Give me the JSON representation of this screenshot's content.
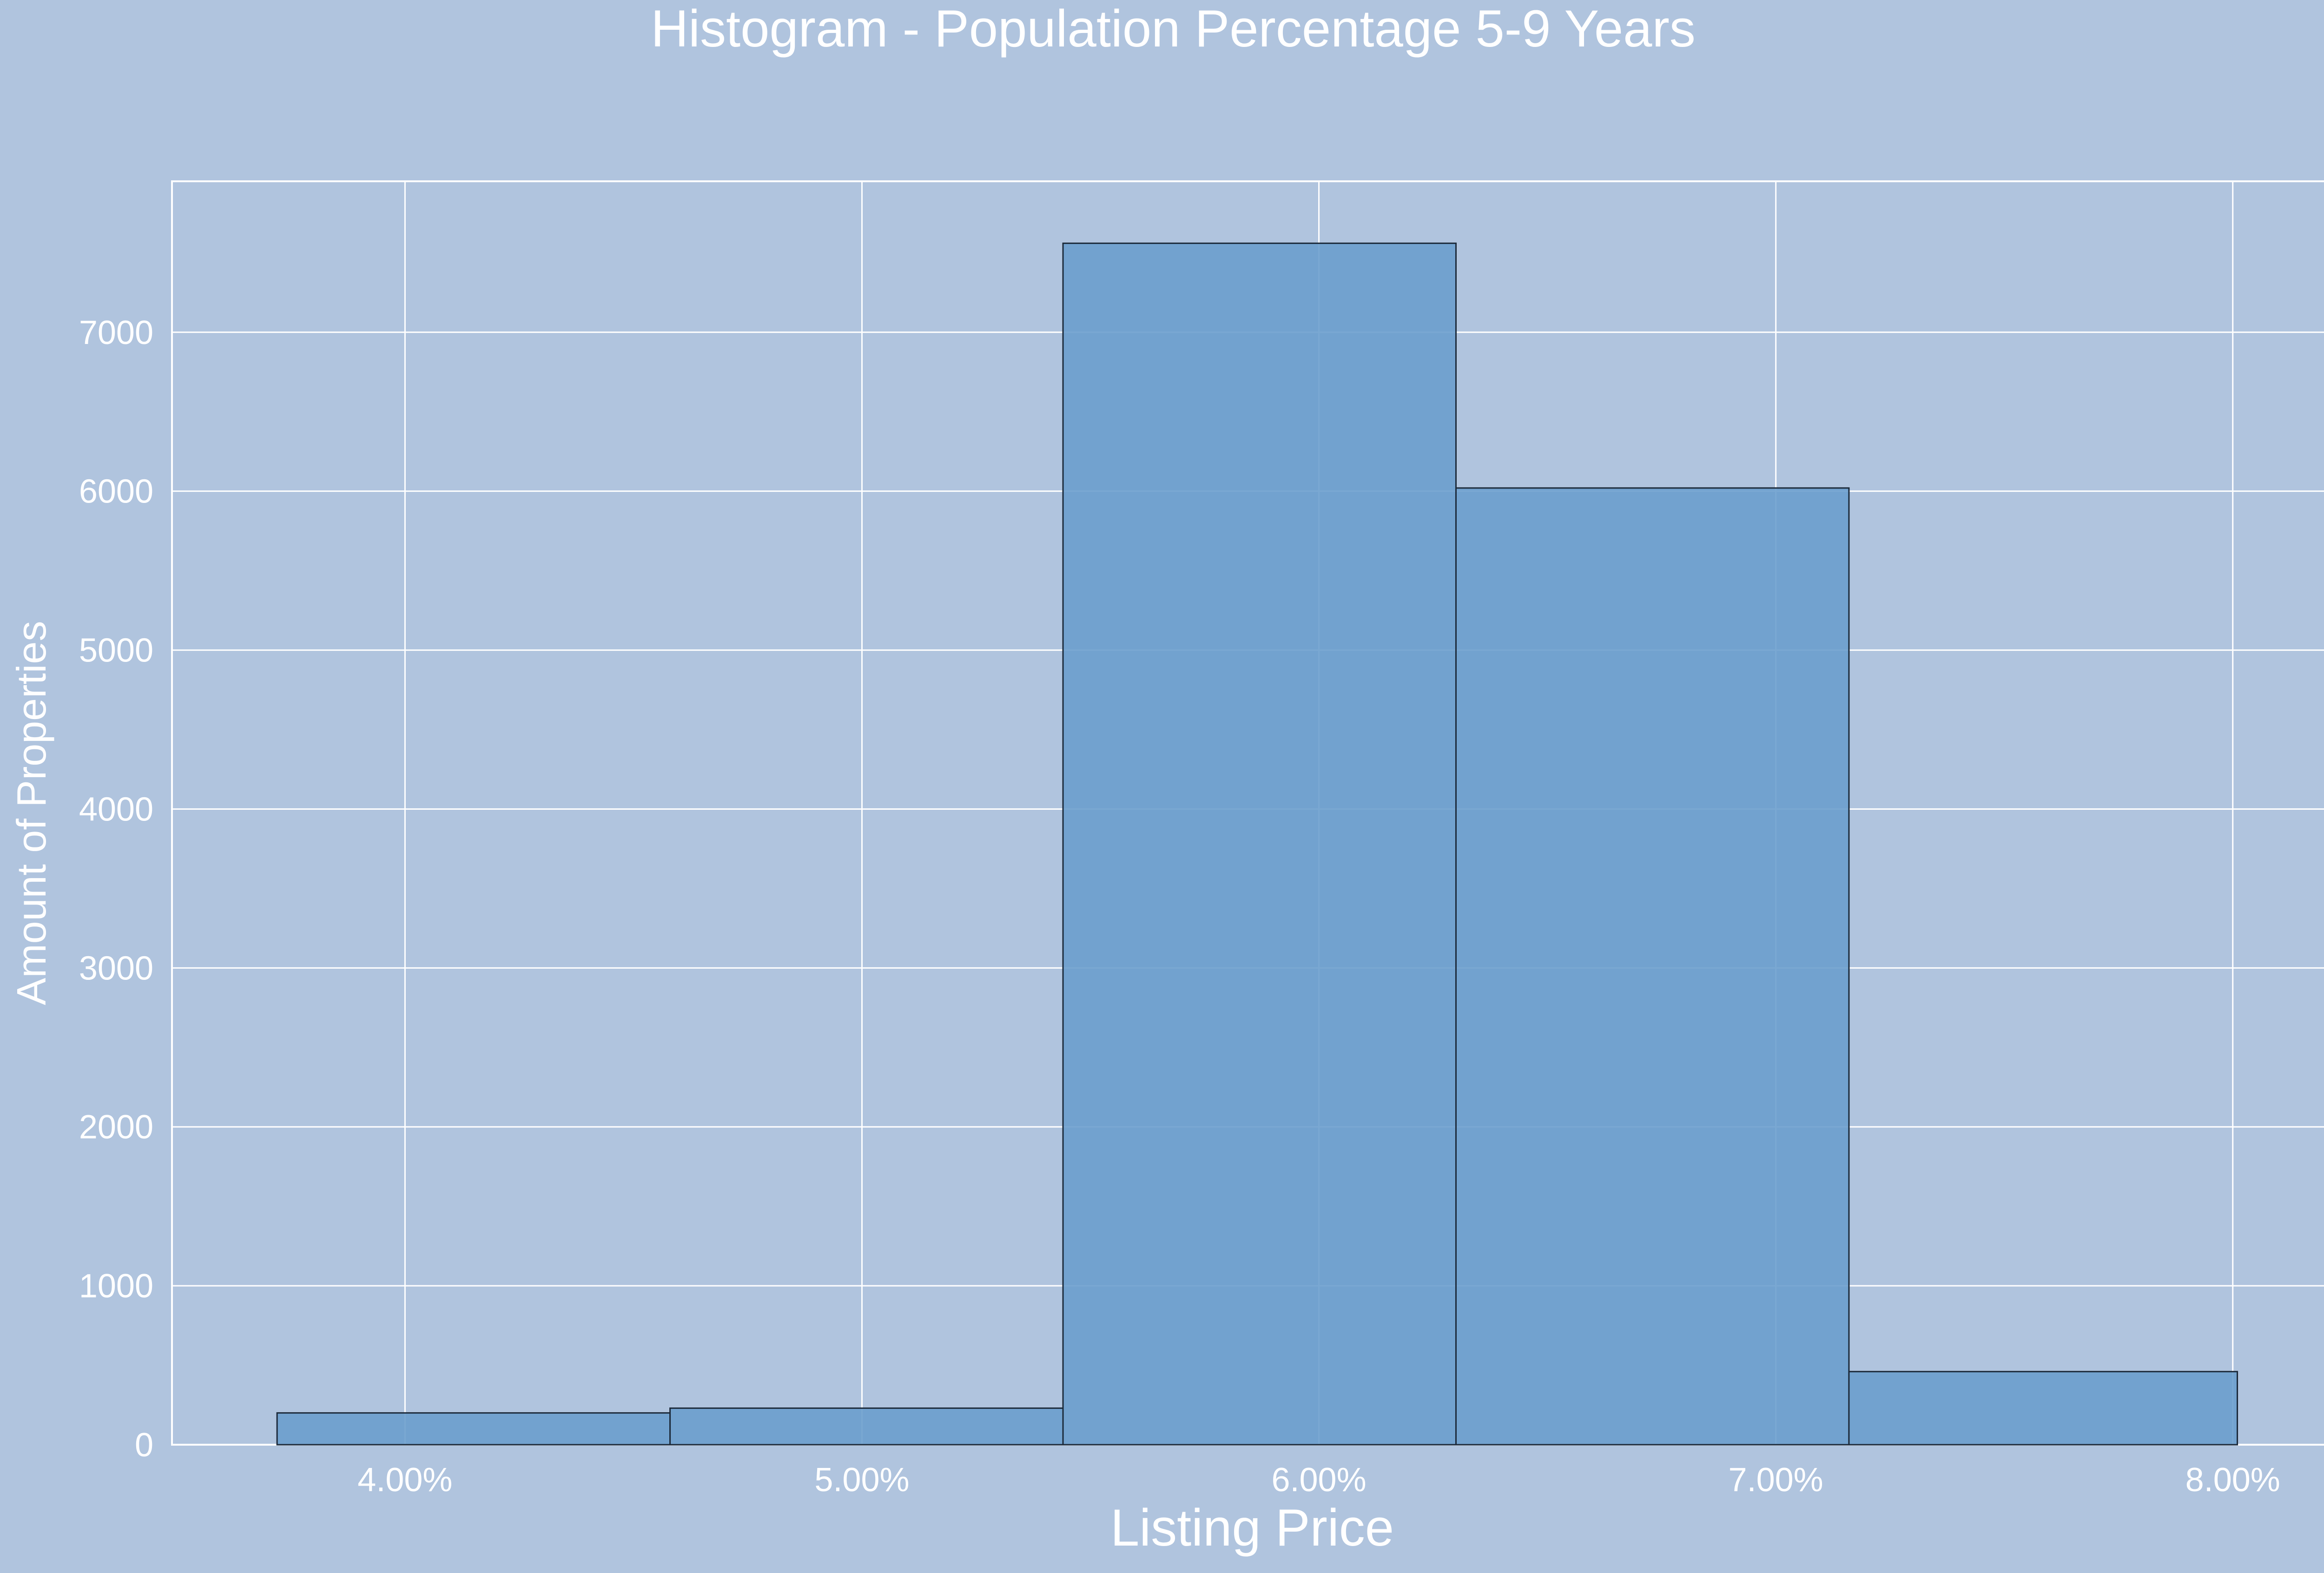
{
  "chart_data": {
    "type": "bar",
    "title": "Histogram - Population Percentage 5-9 Years",
    "xlabel": "Listing Price",
    "ylabel": "Amount of Properties",
    "x_tick_labels": [
      "4.00%",
      "5.00%",
      "6.00%",
      "7.00%",
      "8.00%"
    ],
    "x_ticks": [
      0.04,
      0.05,
      0.06,
      0.07,
      0.08
    ],
    "y_ticks": [
      0,
      1000,
      2000,
      3000,
      4000,
      5000,
      6000,
      7000
    ],
    "xlim": [
      0.0349,
      0.0822
    ],
    "ylim": [
      0,
      7950
    ],
    "bins": [
      {
        "x0": 0.0372,
        "x1": 0.0458,
        "count": 200
      },
      {
        "x0": 0.0458,
        "x1": 0.0544,
        "count": 230
      },
      {
        "x0": 0.0544,
        "x1": 0.063,
        "count": 7560
      },
      {
        "x0": 0.063,
        "x1": 0.0716,
        "count": 6020
      },
      {
        "x0": 0.0716,
        "x1": 0.0801,
        "count": 460
      }
    ],
    "grid": true,
    "legend": "none",
    "colors": {
      "background": "#b0c4de",
      "bar_fill": "#6c9fcd",
      "bar_edge": "#1c2a3a",
      "grid": "#ffffff",
      "text": "#ffffff"
    }
  }
}
